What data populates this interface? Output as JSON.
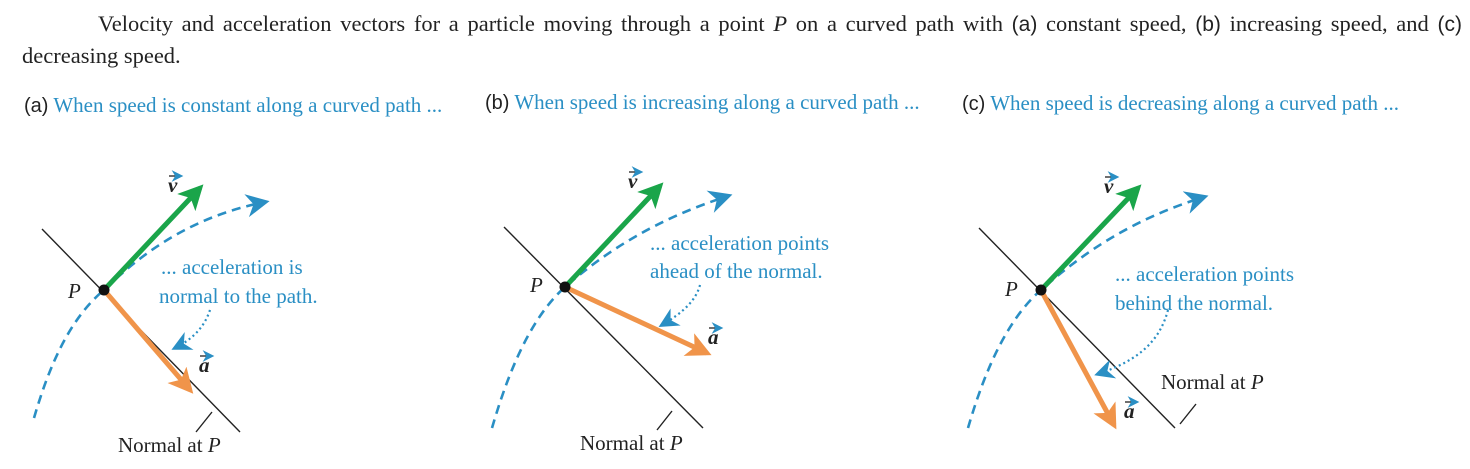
{
  "caption": {
    "part1": "Velocity and acceleration vectors for a particle moving through a point ",
    "point": "P",
    "part2": " on a curved path with ",
    "a": "(a)",
    "a_text": " constant speed, ",
    "b": "(b)",
    "b_text": " increasing speed, and ",
    "c": "(c)",
    "c_text": " decreasing speed."
  },
  "panels": [
    {
      "letter": "(a)",
      "title": "When speed is constant along a curved path ...",
      "annotation_line1": "... acceleration is",
      "annotation_line2": "normal to the path.",
      "normal_label": "Normal at ",
      "point_label": "P",
      "velocity_label": "v",
      "acceleration_label": "a"
    },
    {
      "letter": "(b)",
      "title": "When speed is increasing along a curved path ...",
      "annotation_line1": "... acceleration points",
      "annotation_line2": "ahead of the normal.",
      "normal_label": "Normal at ",
      "point_label": "P",
      "velocity_label": "v",
      "acceleration_label": "a"
    },
    {
      "letter": "(c)",
      "title": "When speed is decreasing along a curved path ...",
      "annotation_line1": "... acceleration points",
      "annotation_line2": "behind the normal.",
      "normal_label": "Normal at ",
      "point_label": "P",
      "velocity_label": "v",
      "acceleration_label": "a"
    }
  ],
  "colors": {
    "velocity": "#1aa54a",
    "acceleration": "#f0944a",
    "path": "#2a8fc4",
    "text_accent": "#2a8fc4",
    "normal_line": "#222222"
  }
}
